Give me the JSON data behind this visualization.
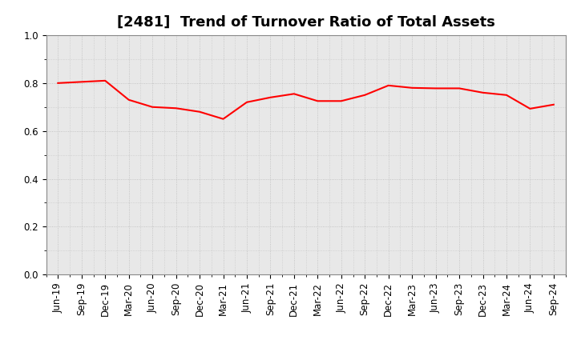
{
  "title": "[2481]  Trend of Turnover Ratio of Total Assets",
  "labels": [
    "Jun-19",
    "Sep-19",
    "Dec-19",
    "Mar-20",
    "Jun-20",
    "Sep-20",
    "Dec-20",
    "Mar-21",
    "Jun-21",
    "Sep-21",
    "Dec-21",
    "Mar-22",
    "Jun-22",
    "Sep-22",
    "Dec-22",
    "Mar-23",
    "Jun-23",
    "Sep-23",
    "Dec-23",
    "Mar-24",
    "Jun-24",
    "Sep-24"
  ],
  "values": [
    0.8,
    0.805,
    0.81,
    0.73,
    0.7,
    0.695,
    0.68,
    0.65,
    0.72,
    0.74,
    0.755,
    0.725,
    0.725,
    0.75,
    0.79,
    0.78,
    0.778,
    0.778,
    0.76,
    0.75,
    0.693,
    0.71
  ],
  "line_color": "#FF0000",
  "line_width": 1.5,
  "ylim": [
    0.0,
    1.0
  ],
  "yticks": [
    0.0,
    0.2,
    0.4,
    0.6,
    0.8,
    1.0
  ],
  "grid_color": "#BBBBBB",
  "bg_color": "#FFFFFF",
  "plot_bg_color": "#E8E8E8",
  "title_fontsize": 13,
  "tick_fontsize": 8.5
}
